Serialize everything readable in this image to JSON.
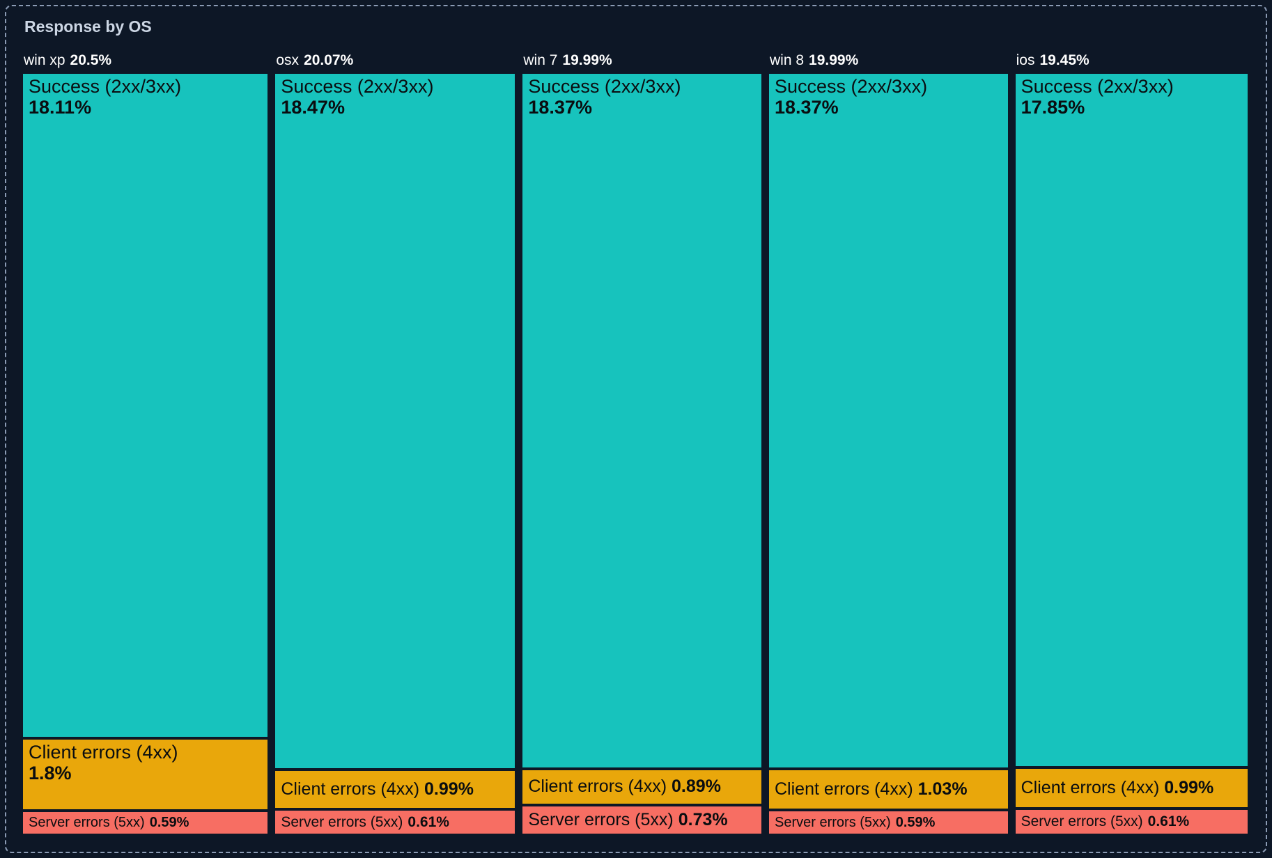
{
  "panel": {
    "title": "Response by OS"
  },
  "colors": {
    "background": "#0d1726",
    "border": "#8b9bb4",
    "title_text": "#ccd6e4",
    "header_text": "#ffffff",
    "cell_text": "#0a0d10",
    "success": "#17c3bd",
    "client": "#e9a70b",
    "server": "#f76e63"
  },
  "chart_data": {
    "type": "treemap",
    "title": "Response by OS",
    "layout": "columns-by-category, stacked segments per category, sizes proportional to percentage",
    "legend_position": "none",
    "grid": false,
    "value_suffix": "%",
    "categories": [
      "win xp",
      "osx",
      "win 7",
      "win 8",
      "ios"
    ],
    "totals": [
      20.5,
      20.07,
      19.99,
      19.99,
      19.45
    ],
    "series": [
      {
        "name": "Success (2xx/3xx)",
        "color_key": "success",
        "values": [
          18.11,
          18.47,
          18.37,
          18.37,
          17.85
        ]
      },
      {
        "name": "Client errors (4xx)",
        "color_key": "client",
        "values": [
          1.8,
          0.99,
          0.89,
          1.03,
          0.99
        ]
      },
      {
        "name": "Server errors (5xx)",
        "color_key": "server",
        "values": [
          0.59,
          0.61,
          0.73,
          0.59,
          0.61
        ]
      }
    ]
  }
}
